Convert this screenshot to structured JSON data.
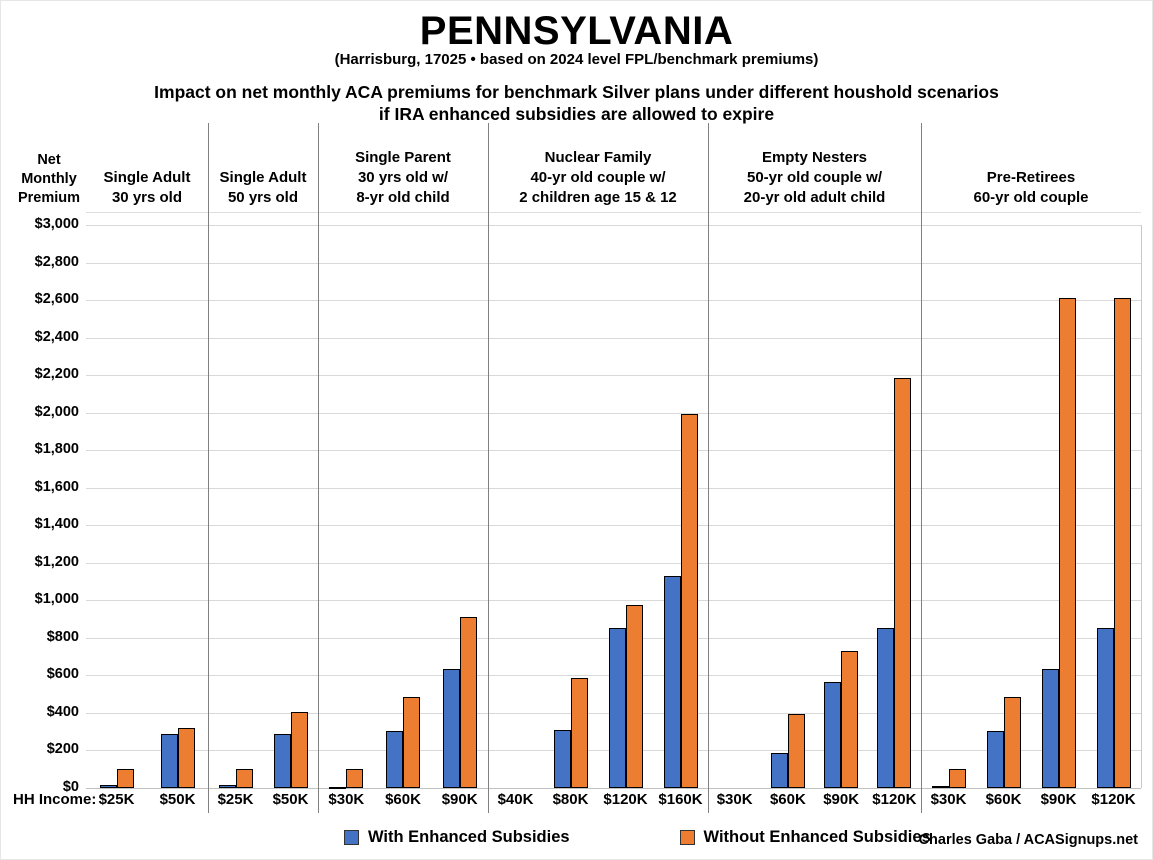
{
  "title": "PENNSYLVANIA",
  "subtitle": "(Harrisburg, 17025 • based on 2024 level FPL/benchmark premiums)",
  "heading_line1": "Impact on net monthly ACA premiums for benchmark Silver plans under different houshold scenarios",
  "heading_line2": "if IRA enhanced subsidies are allowed to expire",
  "y_axis_title": "Net Monthly Premium",
  "hh_income_label": "HH Income:",
  "credit": "Charles Gaba / ACASignups.net",
  "colors": {
    "with_enhanced": "#4472C4",
    "without_enhanced": "#ED7D31",
    "gridline": "#D9D9D9",
    "divider": "#808080"
  },
  "legend": {
    "items": [
      {
        "label": "With Enhanced Subsidies",
        "color": "#4472C4"
      },
      {
        "label": "Without Enhanced Subsidies",
        "color": "#ED7D31"
      }
    ]
  },
  "chart_data": {
    "type": "bar",
    "title": "Impact on net monthly ACA premiums for benchmark Silver plans under different houshold scenarios if IRA enhanced subsidies are allowed to expire",
    "ylabel": "Net Monthly Premium",
    "ylim": [
      0,
      3000
    ],
    "ytick_step": 200,
    "ytick_prefix": "$",
    "grid": true,
    "legend_position": "bottom",
    "series": [
      "With Enhanced Subsidies",
      "Without Enhanced Subsidies"
    ],
    "groups": [
      {
        "label": "Single Adult\n30 yrs old",
        "incomes": [
          "$25K",
          "$50K"
        ],
        "with_enhanced": [
          15,
          290
        ],
        "without_enhanced": [
          100,
          320
        ]
      },
      {
        "label": "Single Adult\n50 yrs old",
        "incomes": [
          "$25K",
          "$50K"
        ],
        "with_enhanced": [
          15,
          290
        ],
        "without_enhanced": [
          100,
          405
        ]
      },
      {
        "label": "Single Parent\n30 yrs old w/\n8-yr old child",
        "incomes": [
          "$30K",
          "$60K",
          "$90K"
        ],
        "with_enhanced": [
          5,
          305,
          635
        ],
        "without_enhanced": [
          100,
          485,
          910
        ]
      },
      {
        "label": "Nuclear Family\n40-yr old couple w/\n2 children age 15 & 12",
        "incomes": [
          "$40K",
          "$80K",
          "$120K",
          "$160K"
        ],
        "with_enhanced": [
          0,
          310,
          850,
          1130
        ],
        "without_enhanced": [
          0,
          585,
          975,
          1995
        ]
      },
      {
        "label": "Empty Nesters\n50-yr old couple w/\n20-yr old adult child",
        "incomes": [
          "$30K",
          "$60K",
          "$90K",
          "$120K"
        ],
        "with_enhanced": [
          0,
          185,
          565,
          850
        ],
        "without_enhanced": [
          0,
          395,
          730,
          2185
        ]
      },
      {
        "label": "Pre-Retirees\n60-yr old couple",
        "incomes": [
          "$30K",
          "$60K",
          "$90K",
          "$120K"
        ],
        "with_enhanced": [
          10,
          305,
          635,
          850
        ],
        "without_enhanced": [
          100,
          485,
          2610,
          2610
        ]
      }
    ]
  }
}
